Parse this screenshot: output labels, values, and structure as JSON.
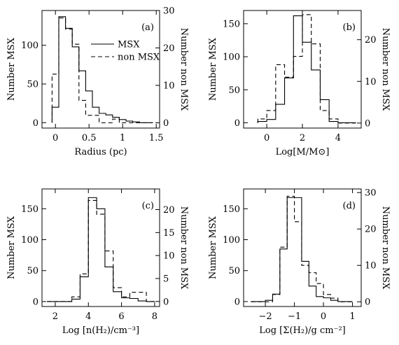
{
  "chart_data": [
    {
      "type": "histogram",
      "panel_label": "(a)",
      "xlabel": "Radius (pc)",
      "ylabel": "Number MSX",
      "y2label": "Number non MSX",
      "xlim": [
        -0.2,
        1.55
      ],
      "ylim": [
        -7,
        145
      ],
      "y2lim": [
        -1.4,
        30
      ],
      "xticks": [
        0,
        0.5,
        1,
        1.5
      ],
      "xtick_labels": [
        "0",
        "0.5",
        "1",
        "1.5"
      ],
      "yticks": [
        0,
        50,
        100
      ],
      "yticks_labels": [
        "0",
        "50",
        "100"
      ],
      "y2ticks": [
        0,
        10,
        20,
        30
      ],
      "y2tick_labels": [
        "0",
        "10",
        "20",
        "30"
      ],
      "legend": [
        {
          "label": "MSX",
          "style": "solid"
        },
        {
          "label": "non MSX",
          "style": "dashed"
        }
      ],
      "series": [
        {
          "name": "MSX",
          "axis": "left",
          "bins": [
            -0.05,
            0.05,
            0.15,
            0.25,
            0.35,
            0.45,
            0.55,
            0.65,
            0.75,
            0.85,
            0.95,
            1.05,
            1.15,
            1.25,
            1.35,
            1.45
          ],
          "values": [
            20,
            137,
            122,
            98,
            67,
            41,
            20,
            12,
            10,
            7,
            4,
            2,
            1,
            0,
            0
          ]
        },
        {
          "name": "non MSX",
          "axis": "right",
          "bins": [
            -0.05,
            0.05,
            0.15,
            0.25,
            0.35,
            0.45,
            0.55,
            0.65,
            0.75,
            0.85,
            0.95,
            1.05,
            1.15,
            1.25,
            1.35,
            1.45
          ],
          "values": [
            13,
            28,
            25,
            21,
            6,
            2,
            2,
            0,
            0,
            1,
            0,
            0,
            0,
            0,
            0
          ]
        }
      ]
    },
    {
      "type": "histogram",
      "panel_label": "(b)",
      "xlabel": "Log[M/M⊙]",
      "ylabel": "Number MSX",
      "y2label": "Number non MSX",
      "xlim": [
        -1.3,
        5.3
      ],
      "ylim": [
        -8,
        170
      ],
      "y2lim": [
        -1.2,
        27
      ],
      "xticks": [
        0,
        2,
        4
      ],
      "xtick_labels": [
        "0",
        "2",
        "4"
      ],
      "yticks": [
        0,
        50,
        100,
        150
      ],
      "yticks_labels": [
        "0",
        "50",
        "100",
        "150"
      ],
      "y2ticks": [
        0,
        10,
        20
      ],
      "y2tick_labels": [
        "0",
        "10",
        "20"
      ],
      "series": [
        {
          "name": "MSX",
          "axis": "left",
          "bins": [
            -0.5,
            0,
            0.5,
            1,
            1.5,
            2,
            2.5,
            3,
            3.5,
            4,
            4.5,
            5
          ],
          "values": [
            2,
            5,
            28,
            68,
            162,
            122,
            80,
            35,
            2,
            0,
            0
          ]
        },
        {
          "name": "non MSX",
          "axis": "right",
          "bins": [
            -0.5,
            0,
            0.5,
            1,
            1.5,
            2,
            2.5,
            3,
            3.5,
            4,
            4.5,
            5
          ],
          "values": [
            1,
            3,
            14,
            11,
            16,
            26,
            19,
            3,
            1,
            0,
            0
          ]
        }
      ]
    },
    {
      "type": "histogram",
      "panel_label": "(c)",
      "xlabel": "Log [n(H₂)/cm⁻³]",
      "ylabel": "Number MSX",
      "y2label": "Number non MSX",
      "xlim": [
        1.2,
        8.3
      ],
      "ylim": [
        -8,
        182
      ],
      "y2lim": [
        -1.1,
        24.5
      ],
      "xticks": [
        2,
        4,
        6,
        8
      ],
      "xtick_labels": [
        "2",
        "4",
        "6",
        "8"
      ],
      "yticks": [
        0,
        50,
        100,
        150
      ],
      "yticks_labels": [
        "0",
        "50",
        "100",
        "150"
      ],
      "y2ticks": [
        0,
        5,
        10,
        15,
        20
      ],
      "y2tick_labels": [
        "0",
        "5",
        "10",
        "15",
        "20"
      ],
      "series": [
        {
          "name": "MSX",
          "axis": "left",
          "bins": [
            1.5,
            2,
            2.5,
            3,
            3.5,
            4,
            4.5,
            5,
            5.5,
            6,
            6.5,
            7,
            7.5,
            8
          ],
          "values": [
            0,
            0,
            0,
            4,
            40,
            168,
            150,
            56,
            16,
            6,
            5,
            1,
            0
          ]
        },
        {
          "name": "non MSX",
          "axis": "right",
          "bins": [
            1.5,
            2,
            2.5,
            3,
            3.5,
            4,
            4.5,
            5,
            5.5,
            6,
            6.5,
            7,
            7.5,
            8
          ],
          "values": [
            0,
            0,
            0,
            1,
            6,
            22,
            19,
            11,
            3,
            1,
            2,
            2,
            0
          ]
        }
      ]
    },
    {
      "type": "histogram",
      "panel_label": "(d)",
      "xlabel": "Log [Σ(H₂)/g cm⁻²]",
      "ylabel": "Number MSX",
      "y2label": "Number non MSX",
      "xlim": [
        -2.75,
        1.3
      ],
      "ylim": [
        -8,
        182
      ],
      "y2lim": [
        -1.3,
        31
      ],
      "xticks": [
        -2,
        -1,
        0,
        1
      ],
      "xtick_labels": [
        "−2",
        "−1",
        "0",
        "1"
      ],
      "yticks": [
        0,
        50,
        100,
        150
      ],
      "yticks_labels": [
        "0",
        "50",
        "100",
        "150"
      ],
      "y2ticks": [
        0,
        10,
        20,
        30
      ],
      "y2tick_labels": [
        "0",
        "10",
        "20",
        "30"
      ],
      "series": [
        {
          "name": "MSX",
          "axis": "left",
          "bins": [
            -2.5,
            -2.25,
            -2,
            -1.75,
            -1.5,
            -1.25,
            -1,
            -0.75,
            -0.5,
            -0.25,
            0,
            0.25,
            0.5,
            0.75,
            1
          ],
          "values": [
            0,
            0,
            2,
            12,
            85,
            168,
            168,
            65,
            25,
            8,
            6,
            2,
            0,
            0
          ]
        },
        {
          "name": "non MSX",
          "axis": "right",
          "bins": [
            -2.5,
            -2.25,
            -2,
            -1.75,
            -1.5,
            -1.25,
            -1,
            -0.75,
            -0.5,
            -0.25,
            0,
            0.25,
            0.5,
            0.75,
            1
          ],
          "values": [
            0,
            0,
            0,
            2,
            15,
            29,
            22,
            10,
            8,
            5,
            2,
            1,
            0,
            0
          ]
        }
      ]
    }
  ]
}
